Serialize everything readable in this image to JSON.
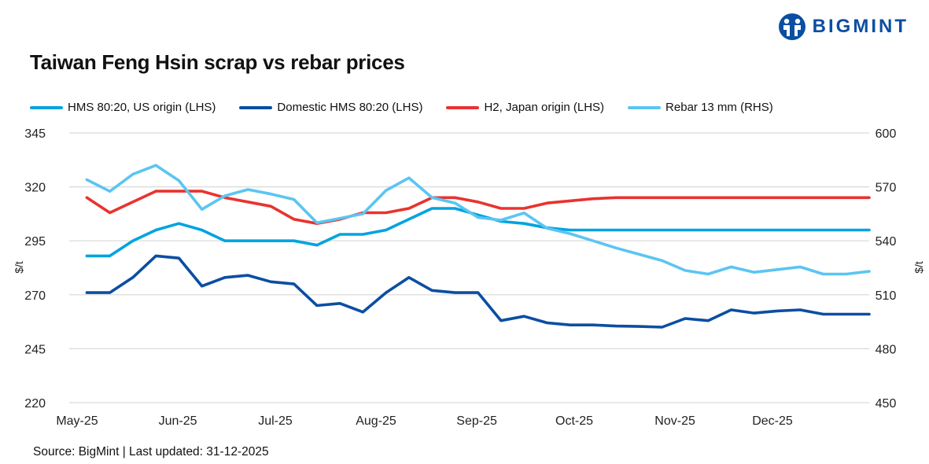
{
  "brand": {
    "logo_text": "BIGMINT",
    "color": "#0b4ea2"
  },
  "source_text": "Source: BigMint |  Last updated: 31-12-2025",
  "chart_data": {
    "type": "line",
    "title": "Taiwan Feng Hsin scrap vs rebar prices",
    "ylabel": "$/t",
    "y2label": "$/t",
    "ylim": [
      220,
      345
    ],
    "y2lim": [
      450,
      600
    ],
    "yticks": [
      "345",
      "320",
      "295",
      "270",
      "245",
      "220"
    ],
    "y2ticks": [
      "600",
      "570",
      "540",
      "510",
      "480",
      "450"
    ],
    "xticks": [
      {
        "label": "May-25",
        "date": "2025-05-01"
      },
      {
        "label": "Jun-25",
        "date": "2025-06-01"
      },
      {
        "label": "Jul-25",
        "date": "2025-07-01"
      },
      {
        "label": "Aug-25",
        "date": "2025-08-01"
      },
      {
        "label": "Sep-25",
        "date": "2025-09-01"
      },
      {
        "label": "Oct-25",
        "date": "2025-10-01"
      },
      {
        "label": "Nov-25",
        "date": "2025-11-01"
      },
      {
        "label": "Dec-25",
        "date": "2025-12-01"
      }
    ],
    "grid": true,
    "legend": "top",
    "x_start": "2025-05-04",
    "x_step_days": 7,
    "series": [
      {
        "name": "HMS 80:20, US origin (LHS)",
        "axis": "left",
        "color": "#00a3e0",
        "values": [
          288,
          288,
          295,
          300,
          303,
          300,
          295,
          295,
          295,
          295,
          293,
          298,
          298,
          300,
          305,
          310,
          310,
          307,
          304,
          303,
          301,
          300,
          300,
          300,
          300,
          300,
          300,
          300,
          300,
          300,
          300,
          300,
          300,
          300,
          300
        ]
      },
      {
        "name": "Domestic HMS 80:20 (LHS)",
        "axis": "left",
        "color": "#0b4ea2",
        "values": [
          271,
          271,
          278,
          288,
          287,
          274,
          278,
          279,
          276,
          275,
          265,
          266,
          262,
          271,
          278,
          272,
          271,
          271,
          258,
          260,
          257,
          256,
          256,
          255.5,
          255.3,
          255,
          259,
          258,
          263,
          261.5,
          262.5,
          263,
          261,
          261,
          261
        ]
      },
      {
        "name": "H2, Japan origin (LHS)",
        "axis": "left",
        "color": "#e8332f",
        "values": [
          315,
          308,
          313,
          318,
          318,
          318,
          315,
          313,
          311,
          305,
          303,
          305,
          308,
          308,
          310,
          315,
          315,
          313,
          310,
          310,
          312.5,
          313.5,
          314.5,
          315,
          315,
          315,
          315,
          315,
          315,
          315,
          315,
          315,
          315,
          315,
          315
        ]
      },
      {
        "name": "Rebar 13 mm (RHS)",
        "axis": "right",
        "color": "#5bc5f2",
        "values": [
          574,
          567.5,
          577,
          582,
          573.5,
          557.5,
          565,
          568.5,
          566,
          563,
          550,
          552.5,
          555,
          568,
          575,
          564,
          561,
          553,
          551.5,
          555.5,
          547,
          544,
          540,
          536,
          532.5,
          529,
          523.5,
          521.5,
          525.5,
          522.5,
          524,
          525.5,
          521.5,
          521.5,
          523
        ]
      }
    ]
  }
}
